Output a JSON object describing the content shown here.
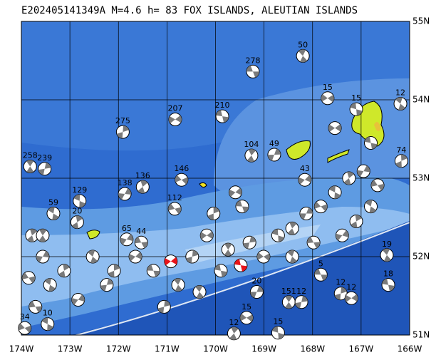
{
  "chart_data": {
    "type": "focal-map",
    "title": "E202405141349A  M=4.6  h= 83  FOX ISLANDS, ALEUTIAN ISLANDS",
    "xlim": [
      -174,
      -166
    ],
    "ylim": [
      51,
      55
    ],
    "xticks": [
      {
        "value": -174,
        "label": "174W"
      },
      {
        "value": -173,
        "label": "173W"
      },
      {
        "value": -172,
        "label": "172W"
      },
      {
        "value": -171,
        "label": "171W"
      },
      {
        "value": -170,
        "label": "170W"
      },
      {
        "value": -169,
        "label": "169W"
      },
      {
        "value": -168,
        "label": "168W"
      },
      {
        "value": -167,
        "label": "167W"
      },
      {
        "value": -166,
        "label": "166W"
      }
    ],
    "yticks": [
      {
        "value": 51,
        "label": "51N"
      },
      {
        "value": 52,
        "label": "52N"
      },
      {
        "value": 53,
        "label": "53N"
      },
      {
        "value": 54,
        "label": "54N"
      },
      {
        "value": 55,
        "label": "55N"
      }
    ],
    "grid": true,
    "ball_color": "#7a7a7a",
    "main_color": "#e8141a",
    "events": [
      {
        "lon": -169.23,
        "lat": 54.36,
        "depth": 278
      },
      {
        "lon": -168.2,
        "lat": 54.56,
        "depth": 50
      },
      {
        "lon": -171.91,
        "lat": 53.59,
        "depth": 275
      },
      {
        "lon": -170.83,
        "lat": 53.75,
        "depth": 207
      },
      {
        "lon": -169.86,
        "lat": 53.79,
        "depth": 210
      },
      {
        "lon": -173.82,
        "lat": 53.15,
        "depth": 258
      },
      {
        "lon": -173.52,
        "lat": 53.12,
        "depth": 239
      },
      {
        "lon": -167.69,
        "lat": 54.02,
        "depth": 15
      },
      {
        "lon": -167.1,
        "lat": 53.88,
        "depth": 15
      },
      {
        "lon": -169.26,
        "lat": 53.29,
        "depth": 104
      },
      {
        "lon": -168.79,
        "lat": 53.3,
        "depth": 49
      },
      {
        "lon": -170.7,
        "lat": 52.98,
        "depth": 146
      },
      {
        "lon": -172.8,
        "lat": 52.71,
        "depth": 129
      },
      {
        "lon": -171.5,
        "lat": 52.89,
        "depth": 136
      },
      {
        "lon": -171.87,
        "lat": 52.8,
        "depth": 138
      },
      {
        "lon": -170.84,
        "lat": 52.61,
        "depth": 112
      },
      {
        "lon": -173.34,
        "lat": 52.55,
        "depth": 59
      },
      {
        "lon": -172.85,
        "lat": 52.44,
        "depth": 20
      },
      {
        "lon": -171.83,
        "lat": 52.22,
        "depth": 65
      },
      {
        "lon": -171.53,
        "lat": 52.18,
        "depth": 44
      },
      {
        "lon": -166.19,
        "lat": 53.95,
        "depth": 12
      },
      {
        "lon": -166.17,
        "lat": 53.22,
        "depth": 74
      },
      {
        "lon": -168.16,
        "lat": 52.98,
        "depth": 43
      },
      {
        "lon": -167.83,
        "lat": 51.77,
        "depth": 5
      },
      {
        "lon": -166.47,
        "lat": 52.02,
        "depth": 19
      },
      {
        "lon": -167.42,
        "lat": 51.53,
        "depth": 12
      },
      {
        "lon": -167.2,
        "lat": 51.47,
        "depth": 12
      },
      {
        "lon": -166.44,
        "lat": 51.64,
        "depth": 18
      },
      {
        "lon": -168.49,
        "lat": 51.42,
        "depth": 151
      },
      {
        "lon": -168.23,
        "lat": 51.42,
        "depth": 12
      },
      {
        "lon": -169.36,
        "lat": 51.22,
        "depth": 15
      },
      {
        "lon": -168.71,
        "lat": 51.03,
        "depth": 15
      },
      {
        "lon": -169.62,
        "lat": 51.02,
        "depth": 12
      },
      {
        "lon": -169.15,
        "lat": 51.55,
        "depth": 20
      },
      {
        "lon": -173.93,
        "lat": 51.09,
        "depth": 34
      },
      {
        "lon": -173.46,
        "lat": 51.14,
        "depth": 10
      },
      {
        "lon": -173.78,
        "lat": 52.27,
        "depth": null
      },
      {
        "lon": -173.56,
        "lat": 52.0,
        "depth": null
      },
      {
        "lon": -173.85,
        "lat": 51.73,
        "depth": null
      },
      {
        "lon": -173.41,
        "lat": 51.64,
        "depth": null
      },
      {
        "lon": -173.12,
        "lat": 51.82,
        "depth": null
      },
      {
        "lon": -172.83,
        "lat": 51.45,
        "depth": null
      },
      {
        "lon": -173.71,
        "lat": 51.36,
        "depth": null
      },
      {
        "lon": -172.53,
        "lat": 52.0,
        "depth": null
      },
      {
        "lon": -172.09,
        "lat": 51.82,
        "depth": null
      },
      {
        "lon": -171.65,
        "lat": 52.0,
        "depth": null
      },
      {
        "lon": -171.28,
        "lat": 51.82,
        "depth": null
      },
      {
        "lon": -170.77,
        "lat": 51.64,
        "depth": null
      },
      {
        "lon": -170.48,
        "lat": 52.0,
        "depth": null
      },
      {
        "lon": -170.18,
        "lat": 52.27,
        "depth": null
      },
      {
        "lon": -169.89,
        "lat": 51.82,
        "depth": null
      },
      {
        "lon": -169.74,
        "lat": 52.09,
        "depth": null
      },
      {
        "lon": -169.3,
        "lat": 52.18,
        "depth": null
      },
      {
        "lon": -169.01,
        "lat": 52.0,
        "depth": null
      },
      {
        "lon": -168.71,
        "lat": 52.27,
        "depth": null
      },
      {
        "lon": -168.42,
        "lat": 52.36,
        "depth": null
      },
      {
        "lon": -168.13,
        "lat": 52.55,
        "depth": null
      },
      {
        "lon": -167.83,
        "lat": 52.64,
        "depth": null
      },
      {
        "lon": -167.54,
        "lat": 52.82,
        "depth": null
      },
      {
        "lon": -167.25,
        "lat": 53.0,
        "depth": null
      },
      {
        "lon": -166.95,
        "lat": 53.09,
        "depth": null
      },
      {
        "lon": -166.66,
        "lat": 52.91,
        "depth": null
      },
      {
        "lon": -166.8,
        "lat": 52.64,
        "depth": null
      },
      {
        "lon": -167.1,
        "lat": 52.45,
        "depth": null
      },
      {
        "lon": -167.39,
        "lat": 52.27,
        "depth": null
      },
      {
        "lon": -167.98,
        "lat": 52.18,
        "depth": null
      },
      {
        "lon": -168.42,
        "lat": 52.0,
        "depth": null
      },
      {
        "lon": -170.04,
        "lat": 52.55,
        "depth": null
      },
      {
        "lon": -169.59,
        "lat": 52.82,
        "depth": null
      },
      {
        "lon": -169.45,
        "lat": 52.64,
        "depth": null
      },
      {
        "lon": -170.33,
        "lat": 51.55,
        "depth": null
      },
      {
        "lon": -171.06,
        "lat": 51.36,
        "depth": null
      },
      {
        "lon": -167.54,
        "lat": 53.64,
        "depth": null
      },
      {
        "lon": -166.8,
        "lat": 53.45,
        "depth": null
      },
      {
        "lon": -173.56,
        "lat": 52.27,
        "depth": null
      },
      {
        "lon": -172.24,
        "lat": 51.64,
        "depth": null
      }
    ],
    "main_events": [
      {
        "lon": -170.92,
        "lat": 51.94
      },
      {
        "lon": -169.48,
        "lat": 51.89
      }
    ]
  }
}
